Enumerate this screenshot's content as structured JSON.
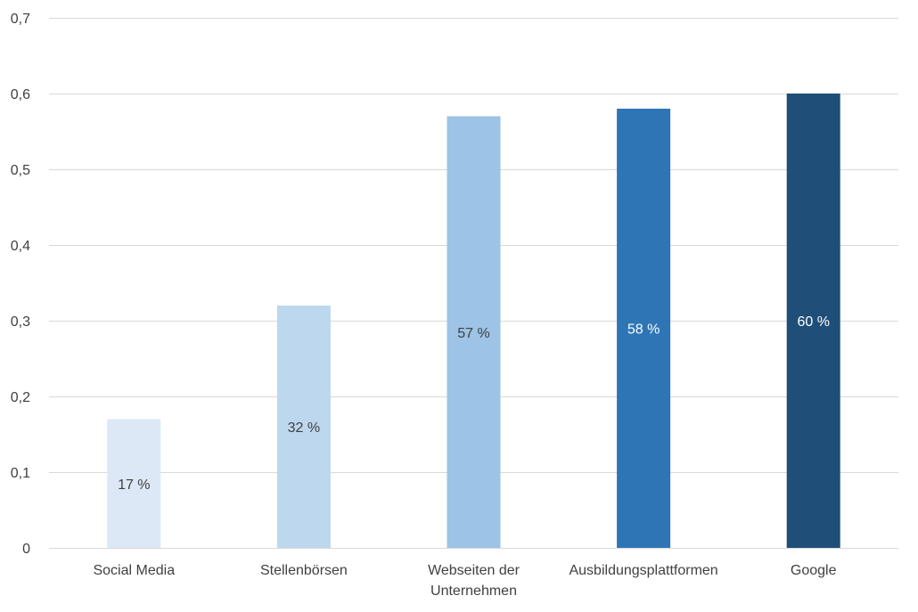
{
  "chart_data": {
    "type": "bar",
    "categories": [
      [
        "Social Media"
      ],
      [
        "Stellenbörsen"
      ],
      [
        "Webseiten der",
        "Unternehmen"
      ],
      [
        "Ausbildungsplattformen"
      ],
      [
        "Google"
      ]
    ],
    "values": [
      0.17,
      0.32,
      0.57,
      0.58,
      0.6
    ],
    "data_labels": [
      "17 %",
      "32 %",
      "57 %",
      "58 %",
      "60 %"
    ],
    "bar_colors": [
      "#dce8f5",
      "#bdd7ee",
      "#9dc3e6",
      "#2e75b6",
      "#1f4e79"
    ],
    "label_colors": [
      "#404040",
      "#404040",
      "#404040",
      "#ffffff",
      "#ffffff"
    ],
    "ylim": [
      0,
      0.7
    ],
    "yticks": [
      0,
      0.1,
      0.2,
      0.3,
      0.4,
      0.5,
      0.6,
      0.7
    ],
    "ytick_labels": [
      "0",
      "0,1",
      "0,2",
      "0,3",
      "0,4",
      "0,5",
      "0,6",
      "0,7"
    ],
    "grid": true,
    "title": "",
    "xlabel": "",
    "ylabel": ""
  }
}
